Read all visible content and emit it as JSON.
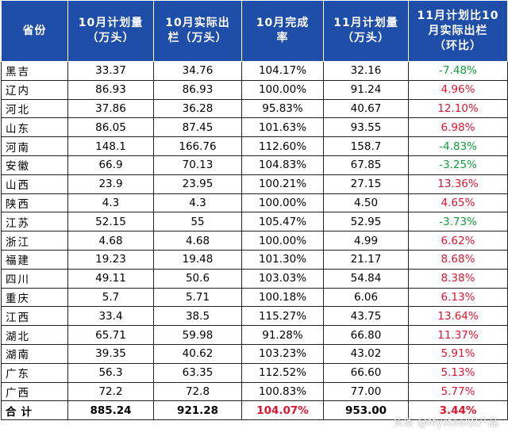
{
  "headers": [
    "省份",
    "10月计划量\n（万头）",
    "10月实际出\n栏（万头）",
    "10月完成\n率",
    "11月计划量\n（万头）",
    "11月计划比10\n月实际出栏\n（环比）"
  ],
  "rows": [
    {
      "province": "黑吉",
      "oct_plan": "33.37",
      "oct_actual": "34.76",
      "oct_rate": "104.17%",
      "nov_plan": "32.16",
      "mom": "-7.48%",
      "trend": "neg"
    },
    {
      "province": "辽内",
      "oct_plan": "86.93",
      "oct_actual": "86.93",
      "oct_rate": "100.00%",
      "nov_plan": "91.24",
      "mom": "4.96%",
      "trend": "pos"
    },
    {
      "province": "河北",
      "oct_plan": "37.86",
      "oct_actual": "36.28",
      "oct_rate": "95.83%",
      "nov_plan": "40.67",
      "mom": "12.10%",
      "trend": "pos"
    },
    {
      "province": "山东",
      "oct_plan": "86.05",
      "oct_actual": "87.45",
      "oct_rate": "101.63%",
      "nov_plan": "93.55",
      "mom": "6.98%",
      "trend": "pos"
    },
    {
      "province": "河南",
      "oct_plan": "148.1",
      "oct_actual": "166.76",
      "oct_rate": "112.60%",
      "nov_plan": "158.7",
      "mom": "-4.83%",
      "trend": "neg"
    },
    {
      "province": "安徽",
      "oct_plan": "66.9",
      "oct_actual": "70.13",
      "oct_rate": "104.83%",
      "nov_plan": "67.85",
      "mom": "-3.25%",
      "trend": "neg"
    },
    {
      "province": "山西",
      "oct_plan": "23.9",
      "oct_actual": "23.95",
      "oct_rate": "100.21%",
      "nov_plan": "27.15",
      "mom": "13.36%",
      "trend": "pos"
    },
    {
      "province": "陕西",
      "oct_plan": "4.3",
      "oct_actual": "4.3",
      "oct_rate": "100.00%",
      "nov_plan": "4.50",
      "mom": "4.65%",
      "trend": "pos"
    },
    {
      "province": "江苏",
      "oct_plan": "52.15",
      "oct_actual": "55",
      "oct_rate": "105.47%",
      "nov_plan": "52.95",
      "mom": "-3.73%",
      "trend": "neg"
    },
    {
      "province": "浙江",
      "oct_plan": "4.68",
      "oct_actual": "4.68",
      "oct_rate": "100.00%",
      "nov_plan": "4.99",
      "mom": "6.62%",
      "trend": "pos"
    },
    {
      "province": "福建",
      "oct_plan": "19.23",
      "oct_actual": "19.48",
      "oct_rate": "101.30%",
      "nov_plan": "21.17",
      "mom": "8.68%",
      "trend": "pos"
    },
    {
      "province": "四川",
      "oct_plan": "49.11",
      "oct_actual": "50.6",
      "oct_rate": "103.03%",
      "nov_plan": "54.84",
      "mom": "8.38%",
      "trend": "pos"
    },
    {
      "province": "重庆",
      "oct_plan": "5.7",
      "oct_actual": "5.71",
      "oct_rate": "100.18%",
      "nov_plan": "6.06",
      "mom": "6.13%",
      "trend": "pos"
    },
    {
      "province": "江西",
      "oct_plan": "33.4",
      "oct_actual": "38.5",
      "oct_rate": "115.27%",
      "nov_plan": "43.75",
      "mom": "13.64%",
      "trend": "pos"
    },
    {
      "province": "湖北",
      "oct_plan": "65.71",
      "oct_actual": "59.98",
      "oct_rate": "91.28%",
      "nov_plan": "66.80",
      "mom": "11.37%",
      "trend": "pos"
    },
    {
      "province": "湖南",
      "oct_plan": "39.35",
      "oct_actual": "40.62",
      "oct_rate": "103.23%",
      "nov_plan": "43.02",
      "mom": "5.91%",
      "trend": "pos"
    },
    {
      "province": "广东",
      "oct_plan": "56.3",
      "oct_actual": "63.35",
      "oct_rate": "112.52%",
      "nov_plan": "66.60",
      "mom": "5.13%",
      "trend": "pos"
    },
    {
      "province": "广西",
      "oct_plan": "72.2",
      "oct_actual": "72.8",
      "oct_rate": "100.83%",
      "nov_plan": "77.00",
      "mom": "5.77%",
      "trend": "pos"
    }
  ],
  "total": {
    "province": "合计",
    "oct_plan": "885.24",
    "oct_actual": "921.28",
    "oct_rate": "104.07%",
    "nov_plan": "953.00",
    "mom": "3.44%"
  },
  "watermark": "头条 @Mysteel农产品",
  "colors": {
    "header_bg": "#1f4ea8",
    "positive": "#e0142e",
    "negative": "#0fa03c"
  }
}
